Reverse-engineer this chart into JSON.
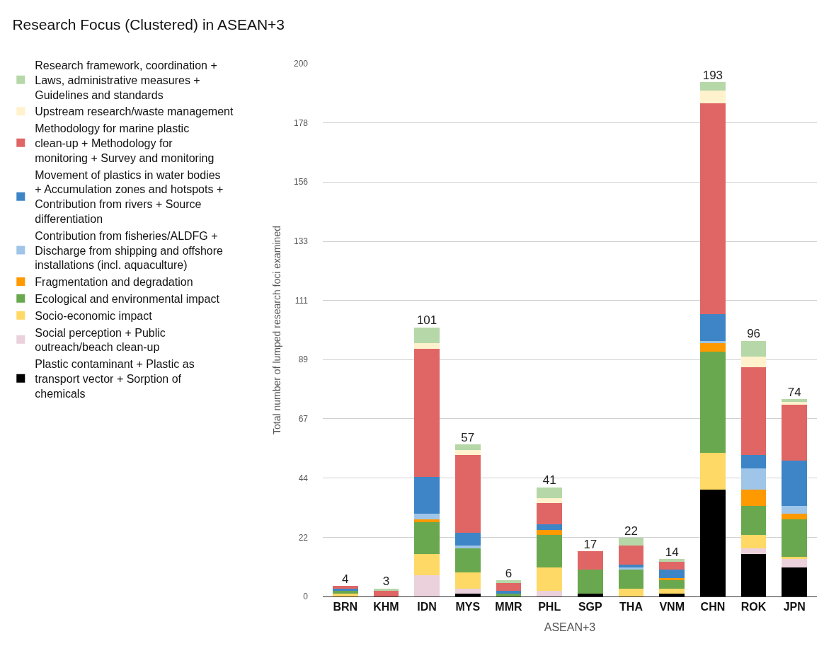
{
  "chart_data": {
    "type": "bar",
    "stacked": true,
    "title": "Research Focus (Clustered) in ASEAN+3",
    "xlabel": "ASEAN+3",
    "ylabel": "Total number of lumped research foci examined",
    "categories": [
      "BRN",
      "KHM",
      "IDN",
      "MYS",
      "MMR",
      "PHL",
      "SGP",
      "THA",
      "VNM",
      "CHN",
      "ROK",
      "JPN"
    ],
    "series": [
      {
        "name": "Plastic contaminant + Plastic as transport vector + Sorption of chemicals",
        "color": "#000000",
        "values": [
          0,
          0,
          0,
          1,
          0,
          0,
          1,
          0,
          1,
          40,
          16,
          11
        ]
      },
      {
        "name": "Social perception + Public outreach/beach clean-up",
        "color": "#ead1dc",
        "values": [
          0,
          0,
          8,
          2,
          0,
          2,
          0,
          0,
          0,
          0,
          2,
          3
        ]
      },
      {
        "name": "Socio-economic impact",
        "color": "#ffd966",
        "values": [
          1,
          0,
          8,
          6,
          0,
          9,
          0,
          3,
          2,
          14,
          5,
          1
        ]
      },
      {
        "name": "Ecological and environmental impact",
        "color": "#6aa84f",
        "values": [
          1,
          0,
          12,
          9,
          1,
          12,
          9,
          7,
          3,
          38,
          11,
          14
        ]
      },
      {
        "name": "Fragmentation and degradation",
        "color": "#ff9900",
        "values": [
          0,
          0,
          1,
          0,
          0,
          2,
          0,
          0,
          1,
          3,
          6,
          2
        ]
      },
      {
        "name": "Contribution from fisheries/ALDFG + Discharge from shipping and offshore installations (incl. aquaculture)",
        "color": "#9fc5e8",
        "values": [
          0,
          0,
          2,
          1,
          0,
          0,
          0,
          1,
          0,
          1,
          8,
          3
        ]
      },
      {
        "name": "Movement of plastics in water bodies + Accumulation zones and hotspots + Contribution from rivers + Source differentiation",
        "color": "#3d85c6",
        "values": [
          1,
          0,
          14,
          5,
          1,
          2,
          0,
          1,
          3,
          10,
          5,
          17
        ]
      },
      {
        "name": "Methodology for marine plastic clean-up + Methodology for monitoring + Survey and monitoring",
        "color": "#e06666",
        "values": [
          1,
          2,
          48,
          29,
          3,
          8,
          7,
          7,
          3,
          79,
          33,
          21
        ]
      },
      {
        "name": "Upstream research/waste management",
        "color": "#fff2cc",
        "values": [
          0,
          0,
          2,
          2,
          0,
          2,
          0,
          0,
          0,
          5,
          4,
          1
        ]
      },
      {
        "name": "Research framework, coordination + Laws, administrative measures + Guidelines and standards",
        "color": "#b6d7a8",
        "values": [
          0,
          1,
          6,
          2,
          1,
          4,
          0,
          3,
          1,
          3,
          6,
          1
        ]
      }
    ],
    "totals": [
      "4",
      "3",
      "101",
      "57",
      "6",
      "41",
      "17",
      "22",
      "14",
      "193",
      "96",
      "74"
    ],
    "ylim": [
      0,
      200
    ],
    "yticks": [
      0,
      {
        "value": 22.2,
        "label": "22"
      },
      {
        "value": 44.4,
        "label": "44"
      },
      {
        "value": 66.7,
        "label": "67"
      },
      {
        "value": 88.9,
        "label": "89"
      },
      {
        "value": 111.1,
        "label": "111"
      },
      {
        "value": 133.3,
        "label": "133"
      },
      {
        "value": 155.6,
        "label": "156"
      },
      {
        "value": 177.8,
        "label": "178"
      },
      200
    ],
    "grid": "y",
    "legend": "left"
  }
}
